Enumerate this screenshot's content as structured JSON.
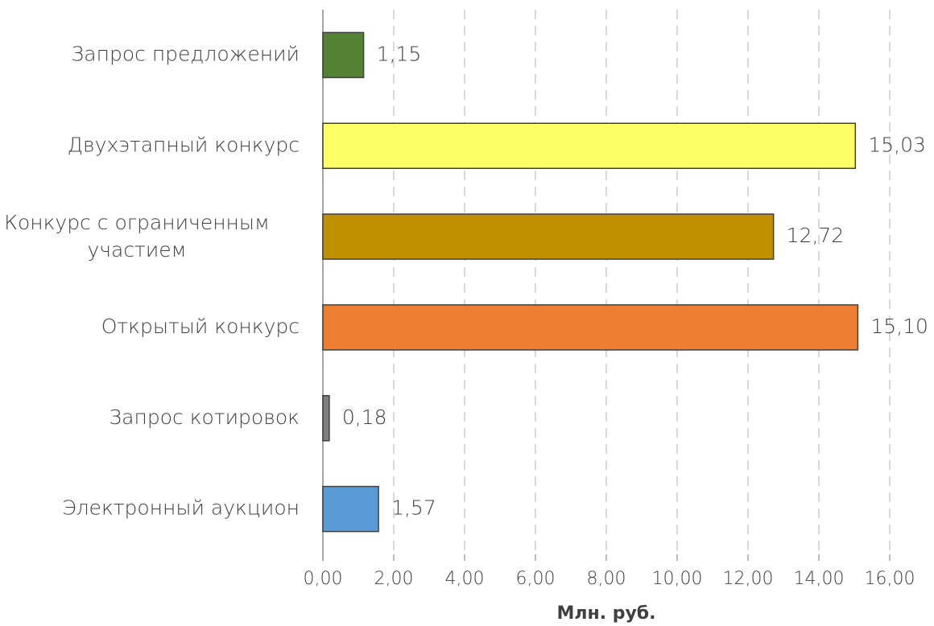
{
  "chart_data": {
    "type": "barh",
    "categories": [
      "Запрос предложений",
      "Двухэтапный конкурс",
      "Конкурс с ограниченным участием",
      "Открытый конкурс",
      "Запрос котировок",
      "Электронный аукцион"
    ],
    "values": [
      1.15,
      15.03,
      12.72,
      15.1,
      0.18,
      1.57
    ],
    "value_labels": [
      "1,15",
      "15,03",
      "12,72",
      "15,10",
      "0,18",
      "1,57"
    ],
    "colors": [
      "#548235",
      "#ffff66",
      "#bf9000",
      "#ed7d31",
      "#7f7f7f",
      "#5b9bd5"
    ],
    "xlabel": "Млн. руб.",
    "xlim": [
      0,
      16
    ],
    "xticks": [
      {
        "value": 0,
        "label": "0,00"
      },
      {
        "value": 2,
        "label": "2,00"
      },
      {
        "value": 4,
        "label": "4,00"
      },
      {
        "value": 6,
        "label": "6,00"
      },
      {
        "value": 8,
        "label": "8,00"
      },
      {
        "value": 10,
        "label": "10,00"
      },
      {
        "value": 12,
        "label": "12,00"
      },
      {
        "value": 14,
        "label": "14,00"
      },
      {
        "value": 16,
        "label": "16,00"
      }
    ],
    "grid": true
  }
}
